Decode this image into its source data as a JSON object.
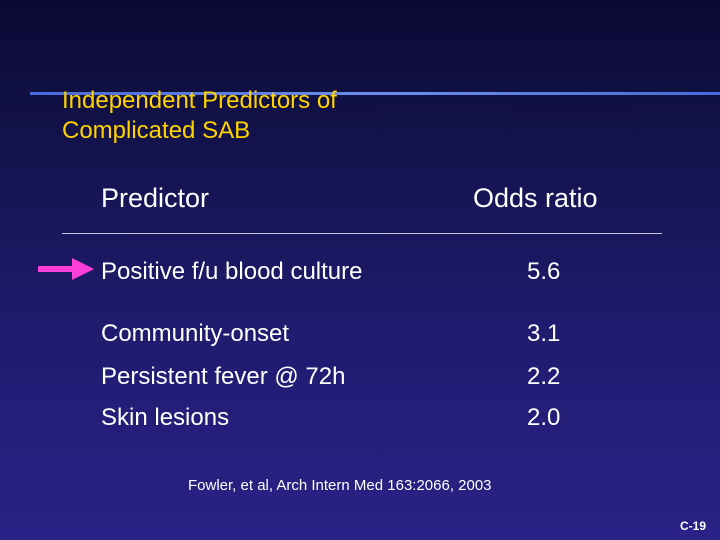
{
  "slide": {
    "title_line1": "Independent Predictors of",
    "title_line2": "Complicated SAB",
    "slide_number": "C-19"
  },
  "table": {
    "headers": {
      "predictor": "Predictor",
      "odds_ratio": "Odds ratio"
    },
    "rows": [
      {
        "predictor": "Positive f/u blood culture",
        "odds_ratio": "5.6"
      },
      {
        "predictor": "Community-onset",
        "odds_ratio": "3.1"
      },
      {
        "predictor": "Persistent fever @ 72h",
        "odds_ratio": "2.2"
      },
      {
        "predictor": "Skin lesions",
        "odds_ratio": "2.0"
      }
    ]
  },
  "citation": "Fowler, et al, Arch Intern Med 163:2066, 2003",
  "colors": {
    "title": "#ffd200",
    "arrow": "#ff3fd8",
    "rule": "#4a6bd8"
  },
  "icons": {
    "pointer": "arrow-right-icon"
  }
}
